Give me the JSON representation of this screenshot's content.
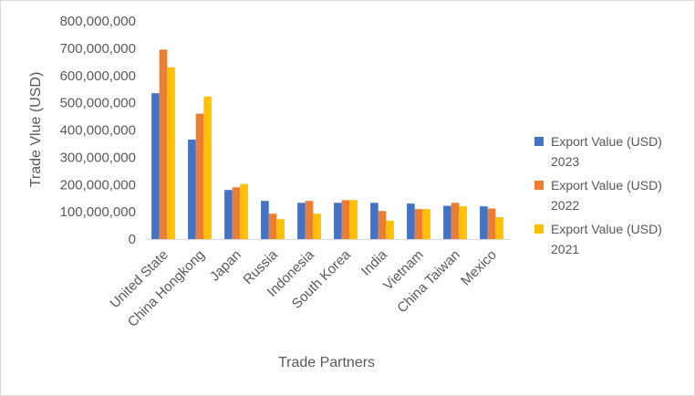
{
  "chart_data": {
    "type": "bar",
    "xlabel": "Trade Partners",
    "ylabel": "Trade Vlue (USD)",
    "ylim": [
      0,
      800000000
    ],
    "yticks": [
      0,
      100000000,
      200000000,
      300000000,
      400000000,
      500000000,
      600000000,
      700000000,
      800000000
    ],
    "ytick_labels": [
      "0",
      "100,000,000",
      "200,000,000",
      "300,000,000",
      "400,000,000",
      "500,000,000",
      "600,000,000",
      "700,000,000",
      "800,000,000"
    ],
    "grid": false,
    "legend_position": "right",
    "categories": [
      "United State",
      "China Hongkong",
      "Japan",
      "Russia",
      "Indonesia",
      "South Korea",
      "India",
      "Vietnam",
      "China Taiwan",
      "Mexico"
    ],
    "series": [
      {
        "name": "Export Value (USD) 2023",
        "legend_lines": [
          "Export Value (USD)",
          "2023"
        ],
        "color": "#4472C4",
        "values": [
          535000000,
          365000000,
          180000000,
          140000000,
          133000000,
          133000000,
          133000000,
          130000000,
          122000000,
          120000000
        ]
      },
      {
        "name": "Export Value (USD) 2022",
        "legend_lines": [
          "Export Value (USD)",
          "2022"
        ],
        "color": "#ED7D31",
        "values": [
          695000000,
          460000000,
          190000000,
          93000000,
          140000000,
          143000000,
          103000000,
          110000000,
          133000000,
          112000000
        ]
      },
      {
        "name": "Export Value (USD) 2021",
        "legend_lines": [
          "Export Value (USD)",
          "2021"
        ],
        "color": "#FFC000",
        "values": [
          630000000,
          523000000,
          202000000,
          73000000,
          93000000,
          143000000,
          67000000,
          110000000,
          120000000,
          80000000
        ]
      }
    ]
  }
}
